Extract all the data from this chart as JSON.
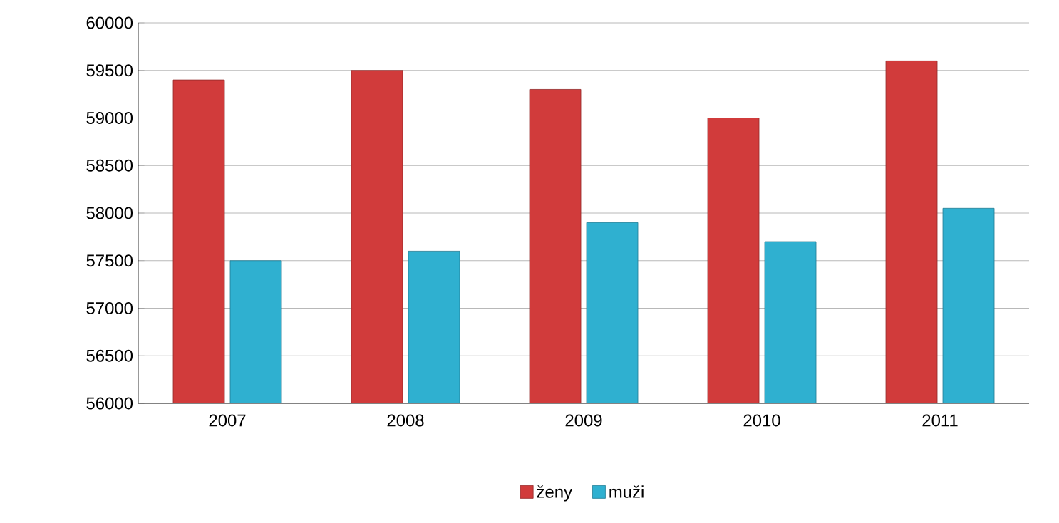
{
  "chart_data": {
    "type": "bar",
    "categories": [
      "2007",
      "2008",
      "2009",
      "2010",
      "2011"
    ],
    "series": [
      {
        "name": "ženy",
        "color": "#d13b3b",
        "values": [
          59400,
          59500,
          59300,
          59000,
          59600
        ]
      },
      {
        "name": "muži",
        "color": "#2fb0d0",
        "values": [
          57500,
          57600,
          57900,
          57700,
          58050
        ]
      }
    ],
    "ylim": [
      56000,
      60000
    ],
    "yticks": [
      56000,
      56500,
      57000,
      57500,
      58000,
      58500,
      59000,
      59500,
      60000
    ],
    "grid": "y",
    "legend": "bottom"
  }
}
